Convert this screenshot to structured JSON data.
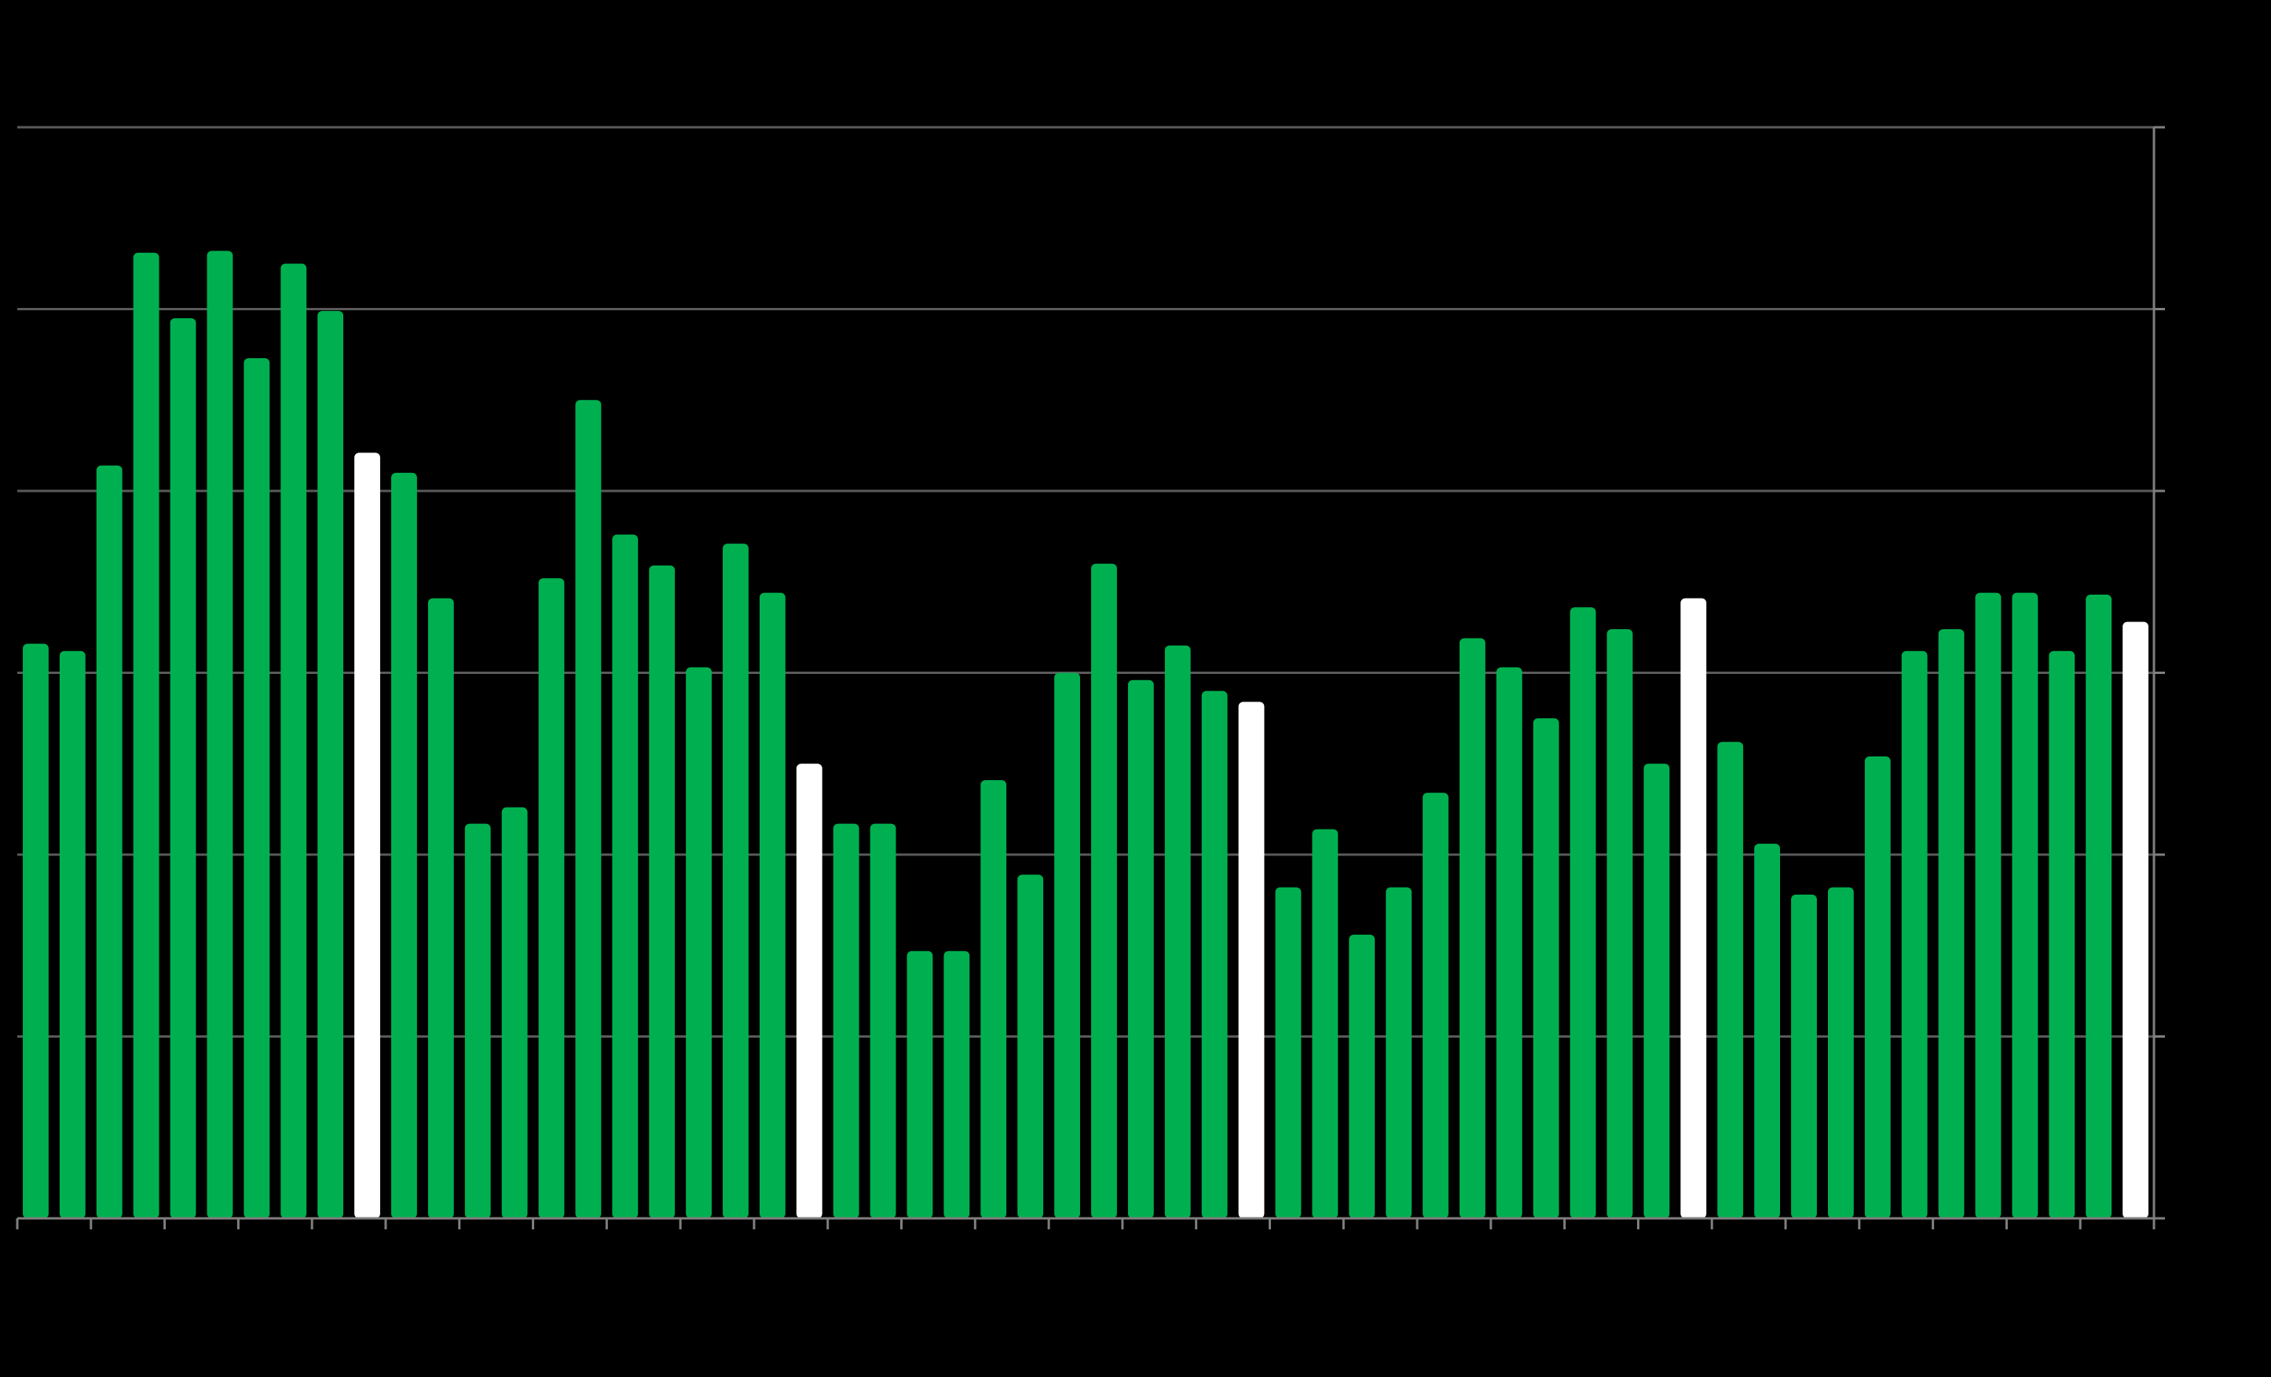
{
  "chart_data": {
    "type": "bar",
    "categories": [
      null,
      null,
      null,
      null,
      null,
      null,
      null,
      null,
      null,
      null,
      null,
      null,
      null,
      null,
      null,
      null,
      null,
      null,
      null,
      null,
      null,
      null,
      null,
      null,
      null,
      null,
      null,
      null,
      null,
      null,
      null,
      null,
      null,
      null,
      null,
      null,
      null,
      null,
      null,
      null,
      null,
      null,
      null,
      null,
      null,
      null,
      null,
      null,
      null,
      null,
      null,
      null,
      null,
      null,
      null,
      null,
      null,
      null
    ],
    "values": [
      3.16,
      3.12,
      4.14,
      5.31,
      4.95,
      5.32,
      4.73,
      5.25,
      4.99,
      4.21,
      4.1,
      3.41,
      2.17,
      2.26,
      3.52,
      4.5,
      3.76,
      3.59,
      3.03,
      3.71,
      3.44,
      2.5,
      2.17,
      2.17,
      1.47,
      1.47,
      2.41,
      1.89,
      3.0,
      3.6,
      2.96,
      3.15,
      2.9,
      2.84,
      1.82,
      2.14,
      1.56,
      1.82,
      2.34,
      3.19,
      3.03,
      2.75,
      3.36,
      3.24,
      2.5,
      3.41,
      2.62,
      2.06,
      1.78,
      1.82,
      2.54,
      3.12,
      3.24,
      3.44,
      3.44,
      3.12,
      3.43,
      3.28
    ],
    "colors": [
      "#00b050",
      "#00b050",
      "#00b050",
      "#00b050",
      "#00b050",
      "#00b050",
      "#00b050",
      "#00b050",
      "#00b050",
      "#ffffff",
      "#00b050",
      "#00b050",
      "#00b050",
      "#00b050",
      "#00b050",
      "#00b050",
      "#00b050",
      "#00b050",
      "#00b050",
      "#00b050",
      "#00b050",
      "#ffffff",
      "#00b050",
      "#00b050",
      "#00b050",
      "#00b050",
      "#00b050",
      "#00b050",
      "#00b050",
      "#00b050",
      "#00b050",
      "#00b050",
      "#00b050",
      "#ffffff",
      "#00b050",
      "#00b050",
      "#00b050",
      "#00b050",
      "#00b050",
      "#00b050",
      "#00b050",
      "#00b050",
      "#00b050",
      "#00b050",
      "#00b050",
      "#ffffff",
      "#00b050",
      "#00b050",
      "#00b050",
      "#00b050",
      "#00b050",
      "#00b050",
      "#00b050",
      "#00b050",
      "#00b050",
      "#00b050",
      "#00b050",
      "#ffffff"
    ],
    "ylim": [
      0,
      6
    ],
    "yticks": [
      0,
      1,
      2,
      3,
      4,
      5,
      6
    ],
    "grid": true
  }
}
